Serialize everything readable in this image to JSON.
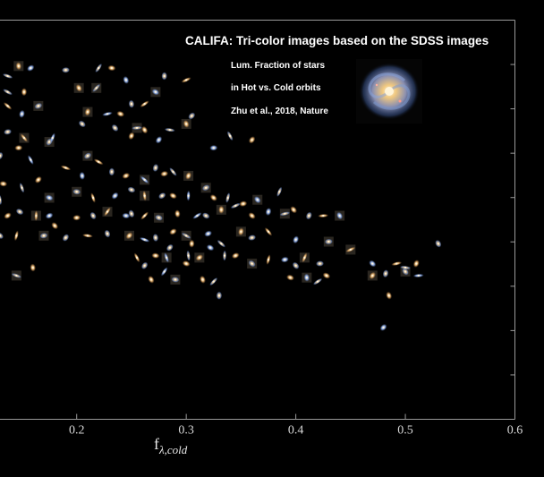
{
  "chart_data": {
    "type": "scatter",
    "title": "CALIFA: Tri-color images based on the SDSS images",
    "annotation_lines": [
      "Lum. Fraction of stars",
      "in Hot vs. Cold orbits",
      "Zhu et al., 2018, Nature"
    ],
    "xlabel_main": "f",
    "xlabel_sub": "λ,cold",
    "xlim": [
      0.13,
      0.6
    ],
    "xticks": [
      "0.2",
      "0.3",
      "0.4",
      "0.5",
      "0.6"
    ],
    "xtick_values": [
      0.2,
      0.3,
      0.4,
      0.5,
      0.6
    ],
    "ylim": [
      0,
      1
    ],
    "grid": false,
    "marker": "galaxy thumbnail",
    "colors": {
      "background": "#000000",
      "frame": "#9a9a9a",
      "text": "#ffffff"
    },
    "points": [
      {
        "x": 0.137,
        "y": 0.86
      },
      {
        "x": 0.147,
        "y": 0.885
      },
      {
        "x": 0.158,
        "y": 0.88
      },
      {
        "x": 0.137,
        "y": 0.82
      },
      {
        "x": 0.152,
        "y": 0.82
      },
      {
        "x": 0.165,
        "y": 0.785
      },
      {
        "x": 0.137,
        "y": 0.785
      },
      {
        "x": 0.15,
        "y": 0.765
      },
      {
        "x": 0.137,
        "y": 0.72
      },
      {
        "x": 0.152,
        "y": 0.705
      },
      {
        "x": 0.13,
        "y": 0.66
      },
      {
        "x": 0.147,
        "y": 0.68
      },
      {
        "x": 0.158,
        "y": 0.65
      },
      {
        "x": 0.175,
        "y": 0.695
      },
      {
        "x": 0.133,
        "y": 0.59
      },
      {
        "x": 0.15,
        "y": 0.58
      },
      {
        "x": 0.165,
        "y": 0.6
      },
      {
        "x": 0.175,
        "y": 0.555
      },
      {
        "x": 0.13,
        "y": 0.55
      },
      {
        "x": 0.137,
        "y": 0.51
      },
      {
        "x": 0.148,
        "y": 0.52
      },
      {
        "x": 0.163,
        "y": 0.51
      },
      {
        "x": 0.175,
        "y": 0.51
      },
      {
        "x": 0.13,
        "y": 0.46
      },
      {
        "x": 0.145,
        "y": 0.46
      },
      {
        "x": 0.17,
        "y": 0.46
      },
      {
        "x": 0.18,
        "y": 0.485
      },
      {
        "x": 0.178,
        "y": 0.705
      },
      {
        "x": 0.19,
        "y": 0.875
      },
      {
        "x": 0.202,
        "y": 0.83
      },
      {
        "x": 0.22,
        "y": 0.88
      },
      {
        "x": 0.232,
        "y": 0.88
      },
      {
        "x": 0.245,
        "y": 0.85
      },
      {
        "x": 0.218,
        "y": 0.83
      },
      {
        "x": 0.24,
        "y": 0.765
      },
      {
        "x": 0.25,
        "y": 0.79
      },
      {
        "x": 0.262,
        "y": 0.79
      },
      {
        "x": 0.272,
        "y": 0.82
      },
      {
        "x": 0.28,
        "y": 0.86
      },
      {
        "x": 0.3,
        "y": 0.85
      },
      {
        "x": 0.205,
        "y": 0.74
      },
      {
        "x": 0.21,
        "y": 0.77
      },
      {
        "x": 0.228,
        "y": 0.765
      },
      {
        "x": 0.235,
        "y": 0.73
      },
      {
        "x": 0.25,
        "y": 0.71
      },
      {
        "x": 0.255,
        "y": 0.73
      },
      {
        "x": 0.262,
        "y": 0.725
      },
      {
        "x": 0.275,
        "y": 0.7
      },
      {
        "x": 0.285,
        "y": 0.725
      },
      {
        "x": 0.3,
        "y": 0.74
      },
      {
        "x": 0.305,
        "y": 0.76
      },
      {
        "x": 0.19,
        "y": 0.63
      },
      {
        "x": 0.205,
        "y": 0.61
      },
      {
        "x": 0.21,
        "y": 0.66
      },
      {
        "x": 0.22,
        "y": 0.645
      },
      {
        "x": 0.232,
        "y": 0.62
      },
      {
        "x": 0.245,
        "y": 0.61
      },
      {
        "x": 0.262,
        "y": 0.6
      },
      {
        "x": 0.272,
        "y": 0.63
      },
      {
        "x": 0.28,
        "y": 0.615
      },
      {
        "x": 0.288,
        "y": 0.62
      },
      {
        "x": 0.302,
        "y": 0.61
      },
      {
        "x": 0.325,
        "y": 0.68
      },
      {
        "x": 0.34,
        "y": 0.71
      },
      {
        "x": 0.36,
        "y": 0.7
      },
      {
        "x": 0.2,
        "y": 0.57
      },
      {
        "x": 0.215,
        "y": 0.555
      },
      {
        "x": 0.235,
        "y": 0.56
      },
      {
        "x": 0.25,
        "y": 0.575
      },
      {
        "x": 0.262,
        "y": 0.56
      },
      {
        "x": 0.278,
        "y": 0.56
      },
      {
        "x": 0.288,
        "y": 0.56
      },
      {
        "x": 0.302,
        "y": 0.56
      },
      {
        "x": 0.318,
        "y": 0.58
      },
      {
        "x": 0.325,
        "y": 0.555
      },
      {
        "x": 0.338,
        "y": 0.555
      },
      {
        "x": 0.352,
        "y": 0.54
      },
      {
        "x": 0.365,
        "y": 0.55
      },
      {
        "x": 0.385,
        "y": 0.57
      },
      {
        "x": 0.2,
        "y": 0.505
      },
      {
        "x": 0.215,
        "y": 0.51
      },
      {
        "x": 0.228,
        "y": 0.52
      },
      {
        "x": 0.245,
        "y": 0.51
      },
      {
        "x": 0.25,
        "y": 0.515
      },
      {
        "x": 0.262,
        "y": 0.51
      },
      {
        "x": 0.275,
        "y": 0.505
      },
      {
        "x": 0.292,
        "y": 0.515
      },
      {
        "x": 0.31,
        "y": 0.51
      },
      {
        "x": 0.318,
        "y": 0.51
      },
      {
        "x": 0.332,
        "y": 0.525
      },
      {
        "x": 0.345,
        "y": 0.535
      },
      {
        "x": 0.36,
        "y": 0.51
      },
      {
        "x": 0.375,
        "y": 0.52
      },
      {
        "x": 0.39,
        "y": 0.515
      },
      {
        "x": 0.398,
        "y": 0.525
      },
      {
        "x": 0.412,
        "y": 0.51
      },
      {
        "x": 0.425,
        "y": 0.51
      },
      {
        "x": 0.44,
        "y": 0.51
      },
      {
        "x": 0.19,
        "y": 0.455
      },
      {
        "x": 0.21,
        "y": 0.46
      },
      {
        "x": 0.228,
        "y": 0.465
      },
      {
        "x": 0.248,
        "y": 0.46
      },
      {
        "x": 0.262,
        "y": 0.45
      },
      {
        "x": 0.272,
        "y": 0.455
      },
      {
        "x": 0.288,
        "y": 0.47
      },
      {
        "x": 0.3,
        "y": 0.46
      },
      {
        "x": 0.305,
        "y": 0.44
      },
      {
        "x": 0.32,
        "y": 0.465
      },
      {
        "x": 0.332,
        "y": 0.44
      },
      {
        "x": 0.35,
        "y": 0.47
      },
      {
        "x": 0.36,
        "y": 0.455
      },
      {
        "x": 0.375,
        "y": 0.47
      },
      {
        "x": 0.4,
        "y": 0.45
      },
      {
        "x": 0.43,
        "y": 0.445
      },
      {
        "x": 0.255,
        "y": 0.405
      },
      {
        "x": 0.262,
        "y": 0.385
      },
      {
        "x": 0.272,
        "y": 0.41
      },
      {
        "x": 0.282,
        "y": 0.405
      },
      {
        "x": 0.285,
        "y": 0.43
      },
      {
        "x": 0.3,
        "y": 0.39
      },
      {
        "x": 0.302,
        "y": 0.41
      },
      {
        "x": 0.312,
        "y": 0.405
      },
      {
        "x": 0.322,
        "y": 0.43
      },
      {
        "x": 0.335,
        "y": 0.41
      },
      {
        "x": 0.345,
        "y": 0.41
      },
      {
        "x": 0.36,
        "y": 0.39
      },
      {
        "x": 0.375,
        "y": 0.4
      },
      {
        "x": 0.39,
        "y": 0.4
      },
      {
        "x": 0.4,
        "y": 0.385
      },
      {
        "x": 0.408,
        "y": 0.405
      },
      {
        "x": 0.422,
        "y": 0.39
      },
      {
        "x": 0.268,
        "y": 0.35
      },
      {
        "x": 0.28,
        "y": 0.37
      },
      {
        "x": 0.29,
        "y": 0.35
      },
      {
        "x": 0.315,
        "y": 0.35
      },
      {
        "x": 0.325,
        "y": 0.345
      },
      {
        "x": 0.395,
        "y": 0.355
      },
      {
        "x": 0.41,
        "y": 0.355
      },
      {
        "x": 0.42,
        "y": 0.345
      },
      {
        "x": 0.428,
        "y": 0.36
      },
      {
        "x": 0.33,
        "y": 0.31
      },
      {
        "x": 0.45,
        "y": 0.425
      },
      {
        "x": 0.47,
        "y": 0.39
      },
      {
        "x": 0.482,
        "y": 0.365
      },
      {
        "x": 0.492,
        "y": 0.39
      },
      {
        "x": 0.5,
        "y": 0.37
      },
      {
        "x": 0.51,
        "y": 0.39
      },
      {
        "x": 0.512,
        "y": 0.36
      },
      {
        "x": 0.53,
        "y": 0.44
      },
      {
        "x": 0.47,
        "y": 0.36
      },
      {
        "x": 0.5,
        "y": 0.38
      },
      {
        "x": 0.485,
        "y": 0.31
      },
      {
        "x": 0.48,
        "y": 0.23
      },
      {
        "x": 0.145,
        "y": 0.36
      },
      {
        "x": 0.16,
        "y": 0.38
      }
    ]
  }
}
